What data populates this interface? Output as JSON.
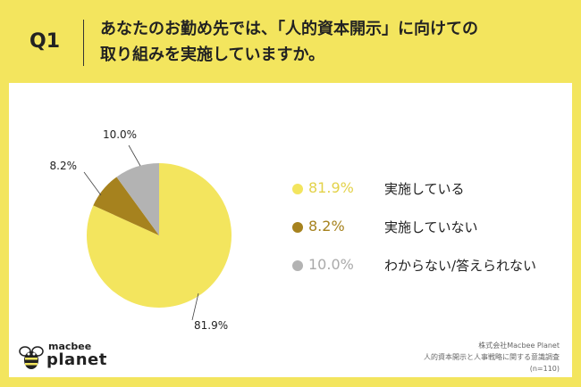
{
  "header": {
    "q_label": "Q1",
    "question_line1": "あなたのお勤め先では、「人的資本開示」に向けての",
    "question_line2": "取り組みを実施していますか。"
  },
  "chart_data": {
    "type": "pie",
    "title": "",
    "slices": [
      {
        "label": "実施している",
        "value": 81.9,
        "display": "81.9%",
        "color": "#F3E55E",
        "value_color": "#E3D24A"
      },
      {
        "label": "実施していない",
        "value": 8.2,
        "display": "8.2%",
        "color": "#A6821E",
        "value_color": "#A6821E"
      },
      {
        "label": "わからない/答えられない",
        "value": 10.0,
        "display": "10.0%",
        "color": "#B3B3B3",
        "value_color": "#AAAAAA"
      }
    ],
    "legend_position": "right"
  },
  "brand": {
    "logo_top": "macbee",
    "logo_main": "planet"
  },
  "source": {
    "company": "株式会社Macbee Planet",
    "survey": "人的資本開示と人事戦略に関する意識調査",
    "sample": "(n=110)"
  }
}
